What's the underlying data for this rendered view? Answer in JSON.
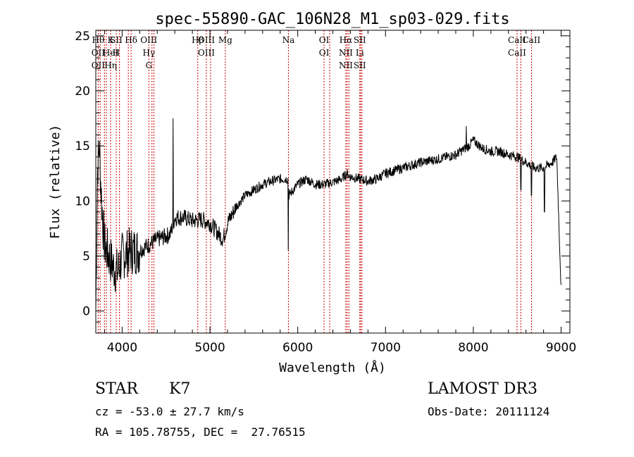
{
  "chart_data": {
    "type": "line",
    "title": "spec-55890-GAC_106N28_M1_sp03-029.fits",
    "xlabel": "Wavelength (Å)",
    "ylabel": "Flux (relative)",
    "xlim": [
      3700,
      9100
    ],
    "ylim": [
      -2,
      25.5
    ],
    "xticks": [
      4000,
      5000,
      6000,
      7000,
      8000,
      9000
    ],
    "yticks": [
      0,
      5,
      10,
      15,
      20,
      25
    ],
    "spectrum_anchors": {
      "x": [
        3700,
        3720,
        3740,
        3760,
        3780,
        3800,
        3850,
        3900,
        3950,
        4000,
        4100,
        4200,
        4300,
        4400,
        4500,
        4550,
        4600,
        4700,
        4800,
        4900,
        5000,
        5100,
        5150,
        5200,
        5300,
        5400,
        5500,
        5600,
        5700,
        5800,
        5890,
        5900,
        6000,
        6100,
        6200,
        6300,
        6400,
        6500,
        6560,
        6600,
        6700,
        6800,
        6900,
        7000,
        7200,
        7400,
        7600,
        7800,
        7950,
        8000,
        8100,
        8200,
        8300,
        8400,
        8500,
        8600,
        8700,
        8800,
        8900,
        8950,
        9000
      ],
      "y": [
        0,
        13,
        15,
        11,
        8,
        6,
        5,
        4,
        3.5,
        5,
        5.5,
        5.5,
        6,
        6.5,
        6.8,
        7,
        8.5,
        8.5,
        8.2,
        8.3,
        8,
        7,
        6.5,
        8,
        9.5,
        10.5,
        11,
        11.5,
        11.8,
        12,
        12,
        10.5,
        11.5,
        12,
        11.5,
        11.5,
        11.7,
        12,
        12.5,
        12.2,
        12,
        11.8,
        12,
        12.5,
        13,
        13.5,
        13.8,
        14.2,
        15,
        15.5,
        14.8,
        14.5,
        14.5,
        14.2,
        14,
        13.5,
        13,
        13,
        13.5,
        14,
        2
      ]
    },
    "spikes": [
      {
        "x": 4580,
        "y": 17.5
      },
      {
        "x": 5892,
        "y": 5.5
      },
      {
        "x": 7920,
        "y": 16.8
      },
      {
        "x": 8542,
        "y": 11
      },
      {
        "x": 8662,
        "y": 10.5
      },
      {
        "x": 8810,
        "y": 9
      }
    ],
    "emission_lines": [
      {
        "x": 3727,
        "labels": [
          "Hθ",
          "OII",
          "OII"
        ]
      },
      {
        "x": 3750,
        "labels": []
      },
      {
        "x": 3798,
        "labels": []
      },
      {
        "x": 3820,
        "labels": []
      },
      {
        "x": 3869,
        "labels": [
          "K",
          "HeI",
          "Hη"
        ]
      },
      {
        "x": 3933,
        "labels": [
          "SII",
          "H"
        ]
      },
      {
        "x": 3970,
        "labels": []
      },
      {
        "x": 4070,
        "labels": []
      },
      {
        "x": 4102,
        "labels": [
          "Hδ"
        ]
      },
      {
        "x": 4304,
        "labels": [
          "OIII",
          "Hγ",
          "G"
        ]
      },
      {
        "x": 4340,
        "labels": []
      },
      {
        "x": 4363,
        "labels": []
      },
      {
        "x": 4861,
        "labels": [
          "Hβ"
        ]
      },
      {
        "x": 4959,
        "labels": [
          "OIII",
          "OIII"
        ]
      },
      {
        "x": 5007,
        "labels": []
      },
      {
        "x": 5175,
        "labels": [
          "Mg"
        ]
      },
      {
        "x": 5894,
        "labels": [
          "Na"
        ]
      },
      {
        "x": 6300,
        "labels": [
          "OI",
          "OI"
        ]
      },
      {
        "x": 6364,
        "labels": []
      },
      {
        "x": 6548,
        "labels": [
          "Hα",
          "NII",
          "NII"
        ]
      },
      {
        "x": 6563,
        "labels": []
      },
      {
        "x": 6583,
        "labels": []
      },
      {
        "x": 6707,
        "labels": [
          "SII",
          "Li",
          "SII"
        ]
      },
      {
        "x": 6716,
        "labels": []
      },
      {
        "x": 6731,
        "labels": []
      },
      {
        "x": 8498,
        "labels": [
          "CaII",
          "CaII"
        ]
      },
      {
        "x": 8542,
        "labels": []
      },
      {
        "x": 8662,
        "labels": [
          "CaII"
        ]
      }
    ]
  },
  "info": {
    "object_class": "STAR",
    "subclass": "K7",
    "survey": "LAMOST DR3",
    "redshift_line": "cz = -53.0 ± 27.7 km/s",
    "obs_date_line": "Obs-Date: 20111124",
    "coords_line": "RA = 105.78755, DEC =  27.76515"
  }
}
